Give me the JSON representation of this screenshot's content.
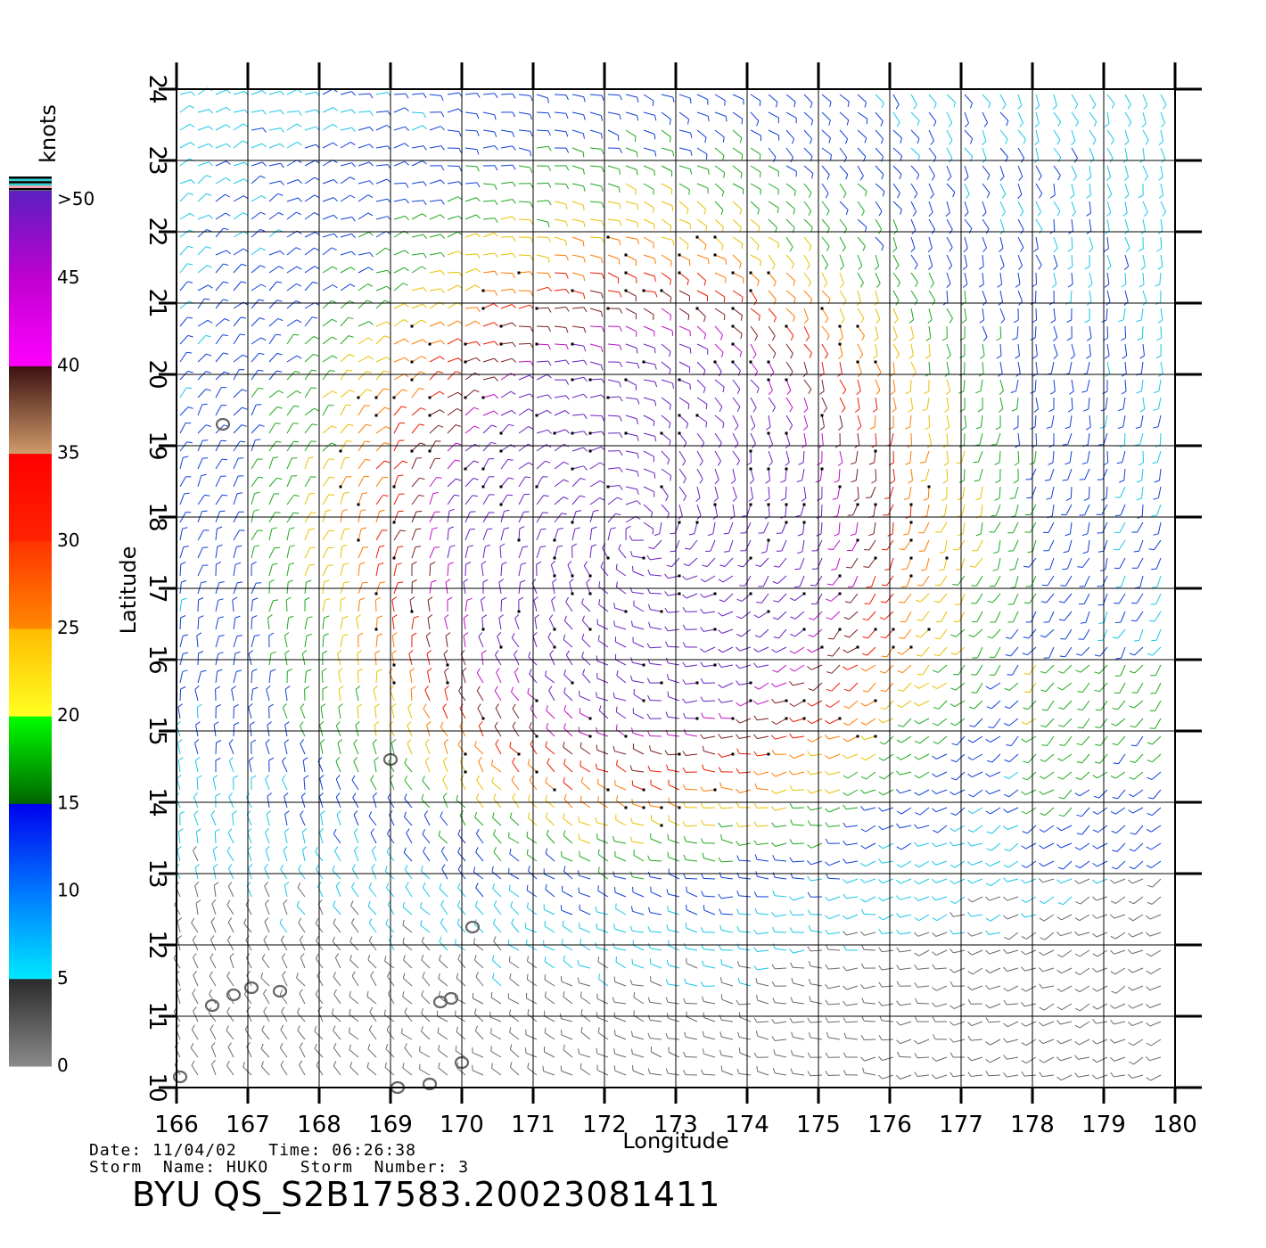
{
  "legend": {
    "unit_label": "knots",
    "colorbar": [
      {
        "label": "0",
        "value": 0,
        "colors": [
          "#8a8a8a",
          "#2a2a2a"
        ]
      },
      {
        "label": "5",
        "value": 5,
        "colors": [
          "#00e8ff",
          "#0077ff"
        ]
      },
      {
        "label": "10",
        "value": 10,
        "colors": [
          "#0077ff",
          "#0000ee"
        ]
      },
      {
        "label": "15",
        "value": 15,
        "colors": [
          "#006400",
          "#00ff00"
        ]
      },
      {
        "label": "20",
        "value": 20,
        "colors": [
          "#ffff22",
          "#ffbb00"
        ]
      },
      {
        "label": "25",
        "value": 25,
        "colors": [
          "#ff8800",
          "#ff3300"
        ]
      },
      {
        "label": "30",
        "value": 30,
        "colors": [
          "#ff2200",
          "#ff0000"
        ]
      },
      {
        "label": "35",
        "value": 35,
        "colors": [
          "#d09a6a",
          "#3a1010"
        ]
      },
      {
        "label": "40",
        "value": 40,
        "colors": [
          "#ff00ff",
          "#c000d0"
        ]
      },
      {
        "label": "45",
        "value": 45,
        "colors": [
          "#c000d0",
          "#5a20c0"
        ]
      },
      {
        "label": ">50",
        "value": 50,
        "colors": [
          "#5a20c0",
          "#5a20c0"
        ]
      }
    ],
    "top_stripes": [
      "#000000",
      "#2fd0d0",
      "#000000",
      "#2fd0d0",
      "#ff9fb0",
      "#000000"
    ]
  },
  "axes": {
    "xlabel": "Longitude",
    "ylabel": "Latitude",
    "x_ticks": [
      166,
      167,
      168,
      169,
      170,
      171,
      172,
      173,
      174,
      175,
      176,
      177,
      178,
      179,
      180
    ],
    "y_ticks": [
      10,
      11,
      12,
      13,
      14,
      15,
      16,
      17,
      18,
      19,
      20,
      21,
      22,
      23,
      24
    ],
    "xlim": [
      166,
      180
    ],
    "ylim": [
      10,
      24
    ],
    "grid": true
  },
  "storm": {
    "center_lon": 172.5,
    "center_lat": 17.8
  },
  "islands": [
    {
      "lon": 166.65,
      "lat": 19.3
    },
    {
      "lon": 169.0,
      "lat": 14.6
    },
    {
      "lon": 170.15,
      "lat": 12.25
    },
    {
      "lon": 166.5,
      "lat": 11.15
    },
    {
      "lon": 166.8,
      "lat": 11.3
    },
    {
      "lon": 167.05,
      "lat": 11.4
    },
    {
      "lon": 167.45,
      "lat": 11.35
    },
    {
      "lon": 169.7,
      "lat": 11.2
    },
    {
      "lon": 169.85,
      "lat": 11.25
    },
    {
      "lon": 170.0,
      "lat": 10.35
    },
    {
      "lon": 169.1,
      "lat": 10.0
    },
    {
      "lon": 169.55,
      "lat": 10.05
    },
    {
      "lon": 166.05,
      "lat": 10.15
    }
  ],
  "info": {
    "date_line": "Date: 11/04/02   Time: 06:26:38",
    "storm_line": "Storm  Name: HUKO   Storm  Number: 3",
    "filename": "BYU  QS_S2B17583.20023081411"
  }
}
